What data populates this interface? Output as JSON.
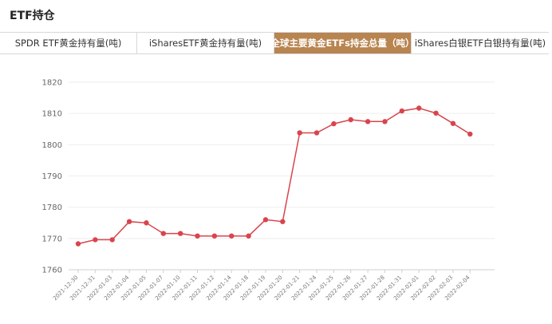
{
  "header": {
    "title": "ETF持仓"
  },
  "tabs": [
    {
      "label": "SPDR ETF黄金持有量(吨)",
      "active": false
    },
    {
      "label": "iSharesETF黄金持有量(吨)",
      "active": false
    },
    {
      "label": "全球主要黄金ETFs持金总量（吨）",
      "active": true
    },
    {
      "label": "iShares白银ETF白银持有量(吨)",
      "active": false
    }
  ],
  "colors": {
    "accent": "#b8844f",
    "series": "#d9444d"
  },
  "chart_data": {
    "type": "line",
    "categories": [
      "2021-12-30",
      "2021-12-31",
      "2022-01-03",
      "2022-01-04",
      "2022-01-05",
      "2022-01-07",
      "2022-01-10",
      "2022-01-11",
      "2022-01-12",
      "2022-01-14",
      "2022-01-18",
      "2022-01-19",
      "2022-01-20",
      "2022-01-21",
      "2022-01-24",
      "2022-01-25",
      "2022-01-26",
      "2022-01-27",
      "2022-01-28",
      "2022-01-31",
      "2022-02-01",
      "2022-02-02",
      "2022-02-03",
      "2022-02-04"
    ],
    "values": [
      1768.3,
      1769.6,
      1769.6,
      1775.4,
      1775.0,
      1771.6,
      1771.6,
      1770.8,
      1770.8,
      1770.8,
      1770.8,
      1776.0,
      1775.4,
      1803.8,
      1803.8,
      1806.7,
      1808.0,
      1807.4,
      1807.4,
      1810.8,
      1811.7,
      1810.1,
      1806.8,
      1803.4
    ],
    "ylim": [
      1760,
      1820
    ],
    "yticks": [
      1760,
      1770,
      1780,
      1790,
      1800,
      1810,
      1820
    ],
    "grid": true
  }
}
